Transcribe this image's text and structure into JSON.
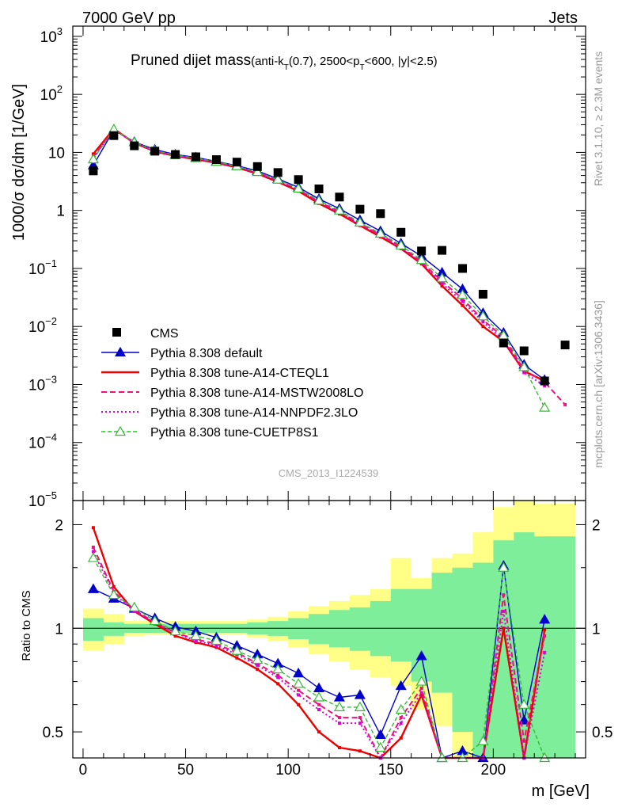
{
  "header": {
    "left": "7000 GeV pp",
    "right": "Jets"
  },
  "title": {
    "main": "Pruned dijet mass",
    "sub_a": "(anti-k",
    "sub_a_idx": "T",
    "sub_b": "(0.7), 2500<p",
    "sub_b_idx": "T",
    "sub_c": "<600, |y|<2.5)"
  },
  "side_labels": {
    "rivet": "Rivet 3.1.10, ≥ 2.3M events",
    "mcplots": "mcplots.cern.ch [arXiv:1306.3436]"
  },
  "watermark": "CMS_2013_I1224539",
  "ylabel_top": "1000/σ dσ/dm [1/GeV]",
  "ylabel_bottom": "Ratio to CMS",
  "xlabel": "m [GeV]",
  "colors": {
    "data": "#000000",
    "default": "#0000cc",
    "cteql1": "#ee0000",
    "mstw": "#ee1177",
    "nnpdf": "#dd00dd",
    "cuetp": "#33bb33",
    "band_inner": "#7fee9a",
    "band_outer": "#ffff88"
  },
  "chart_data": [
    {
      "type": "scatter",
      "panel": "main",
      "yscale": "log",
      "xlim": [
        -5,
        245
      ],
      "ylim": [
        1e-05,
        1500
      ],
      "x_ticks": [
        0,
        50,
        100,
        150,
        200
      ],
      "y_tick_labels": [
        {
          "base": "10",
          "exp": "3",
          "value": 1000
        },
        {
          "base": "10",
          "exp": "2",
          "value": 100
        },
        {
          "base": "10",
          "exp": "",
          "value": 10
        },
        {
          "base": "1",
          "exp": "",
          "value": 1
        },
        {
          "base": "10",
          "exp": "−1",
          "value": 0.1
        },
        {
          "base": "10",
          "exp": "−2",
          "value": 0.01
        },
        {
          "base": "10",
          "exp": "−3",
          "value": 0.001
        },
        {
          "base": "10",
          "exp": "−4",
          "value": 0.0001
        },
        {
          "base": "10",
          "exp": "−5",
          "value": 1e-05
        }
      ],
      "data": {
        "name": "CMS",
        "x": [
          5,
          15,
          25,
          35,
          45,
          55,
          65,
          75,
          85,
          95,
          105,
          115,
          125,
          135,
          145,
          155,
          165,
          175,
          185,
          195,
          205,
          215,
          225,
          235
        ],
        "y": [
          4.8,
          19.5,
          13.0,
          10.5,
          9.2,
          8.4,
          7.5,
          6.8,
          5.7,
          4.5,
          3.4,
          2.35,
          1.7,
          1.05,
          0.88,
          0.42,
          0.2,
          0.205,
          0.1,
          0.036,
          0.0052,
          0.0038,
          0.00115,
          0.0048
        ]
      },
      "series": [
        {
          "name": "Pythia 8.308 default",
          "key": "default",
          "style": "solid-triangle",
          "x": [
            5,
            15,
            25,
            35,
            45,
            55,
            65,
            75,
            85,
            95,
            105,
            115,
            125,
            135,
            145,
            155,
            165,
            175,
            185,
            195,
            205,
            215,
            225
          ],
          "y": [
            6.0,
            24.5,
            15.2,
            11.2,
            9.2,
            8.2,
            7.0,
            5.9,
            4.8,
            3.5,
            2.5,
            1.58,
            1.07,
            0.68,
            0.44,
            0.27,
            0.163,
            0.085,
            0.044,
            0.017,
            0.0078,
            0.0022,
            0.0012
          ]
        },
        {
          "name": "Pythia 8.308 tune-A14-CTEQL1",
          "key": "cteql1",
          "style": "solid",
          "x": [
            5,
            15,
            25,
            35,
            45,
            55,
            65,
            75,
            85,
            95,
            105,
            115,
            125,
            135,
            145,
            155,
            165,
            175,
            185,
            195,
            205,
            215,
            225
          ],
          "y": [
            9.4,
            25.5,
            14.5,
            10.4,
            8.7,
            7.6,
            6.6,
            5.5,
            4.3,
            3.1,
            2.15,
            1.32,
            0.87,
            0.55,
            0.35,
            0.22,
            0.12,
            0.05,
            0.023,
            0.01,
            0.0055,
            0.0017,
            0.00115
          ]
        },
        {
          "name": "Pythia 8.308 tune-A14-MSTW2008LO",
          "key": "mstw",
          "style": "dashed",
          "x": [
            5,
            15,
            25,
            35,
            45,
            55,
            65,
            75,
            85,
            95,
            105,
            115,
            125,
            135,
            145,
            155,
            165,
            175,
            185,
            195,
            205,
            215,
            225,
            235
          ],
          "y": [
            8.3,
            24.8,
            14.8,
            10.6,
            8.9,
            7.8,
            6.8,
            5.7,
            4.5,
            3.3,
            2.3,
            1.42,
            0.94,
            0.6,
            0.38,
            0.24,
            0.13,
            0.06,
            0.03,
            0.013,
            0.0065,
            0.0018,
            0.0011,
            0.00045
          ]
        },
        {
          "name": "Pythia 8.308 tune-A14-NNPDF2.3LO",
          "key": "nnpdf",
          "style": "dotted",
          "x": [
            5,
            15,
            25,
            35,
            45,
            55,
            65,
            75,
            85,
            95,
            105,
            115,
            125,
            135,
            145,
            155,
            165,
            175,
            185,
            195,
            205,
            215,
            225
          ],
          "y": [
            8.0,
            24.6,
            14.7,
            10.5,
            8.8,
            7.7,
            6.7,
            5.6,
            4.4,
            3.25,
            2.25,
            1.38,
            0.92,
            0.58,
            0.37,
            0.23,
            0.125,
            0.055,
            0.027,
            0.012,
            0.0058,
            0.0016,
            0.00095
          ]
        },
        {
          "name": "Pythia 8.308 tune-CUETP8S1",
          "key": "cuetp",
          "style": "dashed-open-triangle",
          "x": [
            5,
            15,
            25,
            35,
            45,
            55,
            65,
            75,
            85,
            95,
            105,
            115,
            125,
            135,
            145,
            155,
            165,
            175,
            185,
            195,
            205,
            215,
            225
          ],
          "y": [
            7.6,
            25.0,
            15.0,
            10.8,
            9.0,
            8.0,
            6.9,
            5.8,
            4.6,
            3.4,
            2.38,
            1.48,
            1.0,
            0.62,
            0.4,
            0.25,
            0.14,
            0.068,
            0.035,
            0.015,
            0.007,
            0.002,
            0.0004
          ]
        }
      ]
    },
    {
      "type": "line",
      "panel": "ratio",
      "yscale": "log",
      "xlim": [
        -5,
        245
      ],
      "ylim": [
        0.42,
        2.35
      ],
      "x_ticks": [
        0,
        50,
        100,
        150,
        200
      ],
      "y_ticks": [
        0.5,
        1,
        2
      ],
      "band": {
        "edges": [
          0,
          10,
          20,
          30,
          40,
          50,
          60,
          70,
          80,
          90,
          100,
          110,
          120,
          130,
          140,
          150,
          160,
          170,
          180,
          190,
          200,
          210,
          220,
          240
        ],
        "inner_lo": [
          0.92,
          0.95,
          0.97,
          0.97,
          0.97,
          0.97,
          0.97,
          0.97,
          0.96,
          0.95,
          0.93,
          0.9,
          0.88,
          0.86,
          0.83,
          0.8,
          0.7,
          0.65,
          0.5,
          0.42,
          0.42,
          0.42,
          0.42
        ],
        "inner_hi": [
          1.07,
          1.04,
          1.03,
          1.03,
          1.03,
          1.03,
          1.03,
          1.03,
          1.04,
          1.05,
          1.07,
          1.1,
          1.13,
          1.15,
          1.2,
          1.3,
          1.3,
          1.45,
          1.5,
          1.55,
          1.8,
          1.9,
          1.85
        ],
        "outer_lo": [
          0.86,
          0.9,
          0.95,
          0.96,
          0.96,
          0.96,
          0.96,
          0.96,
          0.94,
          0.92,
          0.88,
          0.84,
          0.8,
          0.76,
          0.72,
          0.68,
          0.58,
          0.52,
          0.42,
          0.42,
          0.42,
          0.42,
          0.42
        ],
        "outer_hi": [
          1.14,
          1.1,
          1.05,
          1.05,
          1.05,
          1.05,
          1.05,
          1.05,
          1.06,
          1.08,
          1.12,
          1.16,
          1.2,
          1.25,
          1.3,
          1.6,
          1.4,
          1.6,
          1.65,
          1.9,
          2.25,
          2.35,
          2.3
        ]
      },
      "series": [
        {
          "name": "Pythia 8.308 default",
          "key": "default",
          "x": [
            5,
            15,
            25,
            35,
            45,
            55,
            65,
            75,
            85,
            95,
            105,
            115,
            125,
            135,
            145,
            155,
            165,
            175,
            185,
            195,
            205,
            215,
            225
          ],
          "y": [
            1.3,
            1.22,
            1.14,
            1.07,
            1.01,
            0.98,
            0.94,
            0.89,
            0.84,
            0.79,
            0.74,
            0.67,
            0.63,
            0.64,
            0.49,
            0.68,
            0.83,
            0.41,
            0.44,
            0.42,
            1.52,
            0.54,
            1.06
          ]
        },
        {
          "name": "Pythia 8.308 tune-A14-CTEQL1",
          "key": "cteql1",
          "x": [
            5,
            15,
            25,
            35,
            45,
            55,
            65,
            75,
            85,
            95,
            105,
            115,
            125,
            135,
            145,
            155,
            165,
            175,
            185,
            195,
            205,
            215,
            225
          ],
          "y": [
            1.96,
            1.32,
            1.12,
            1.03,
            0.95,
            0.91,
            0.88,
            0.82,
            0.76,
            0.69,
            0.6,
            0.5,
            0.45,
            0.44,
            0.38,
            0.48,
            0.64,
            0.42,
            0.42,
            0.42,
            1.0,
            0.42,
            0.99
          ]
        },
        {
          "name": "Pythia 8.308 tune-A14-MSTW2008LO",
          "key": "mstw",
          "x": [
            5,
            15,
            25,
            35,
            45,
            55,
            65,
            75,
            85,
            95,
            105,
            115,
            125,
            135,
            145,
            155,
            165,
            175,
            185,
            195,
            205,
            215,
            225
          ],
          "y": [
            1.72,
            1.28,
            1.13,
            1.04,
            0.97,
            0.93,
            0.9,
            0.85,
            0.79,
            0.73,
            0.66,
            0.6,
            0.55,
            0.55,
            0.42,
            0.55,
            0.67,
            0.42,
            0.42,
            0.42,
            1.25,
            0.47,
            0.95
          ]
        },
        {
          "name": "Pythia 8.308 tune-A14-NNPDF2.3LO",
          "key": "nnpdf",
          "x": [
            5,
            15,
            25,
            35,
            45,
            55,
            65,
            75,
            85,
            95,
            105,
            115,
            125,
            135,
            145,
            155,
            165,
            175,
            185,
            195,
            205,
            215,
            225
          ],
          "y": [
            1.67,
            1.26,
            1.12,
            1.04,
            0.97,
            0.92,
            0.89,
            0.84,
            0.78,
            0.72,
            0.64,
            0.58,
            0.53,
            0.53,
            0.41,
            0.53,
            0.65,
            0.42,
            0.42,
            0.42,
            1.12,
            0.42,
            0.85
          ]
        },
        {
          "name": "Pythia 8.308 tune-CUETP8S1",
          "key": "cuetp",
          "x": [
            5,
            15,
            25,
            35,
            45,
            55,
            65,
            75,
            85,
            95,
            105,
            115,
            125,
            135,
            145,
            155,
            165,
            175,
            185,
            195,
            205,
            215,
            225
          ],
          "y": [
            1.6,
            1.25,
            1.15,
            1.05,
            0.98,
            0.95,
            0.92,
            0.86,
            0.81,
            0.76,
            0.69,
            0.63,
            0.59,
            0.59,
            0.45,
            0.58,
            0.7,
            0.42,
            0.42,
            0.47,
            1.5,
            0.6,
            0.42
          ]
        }
      ]
    }
  ]
}
